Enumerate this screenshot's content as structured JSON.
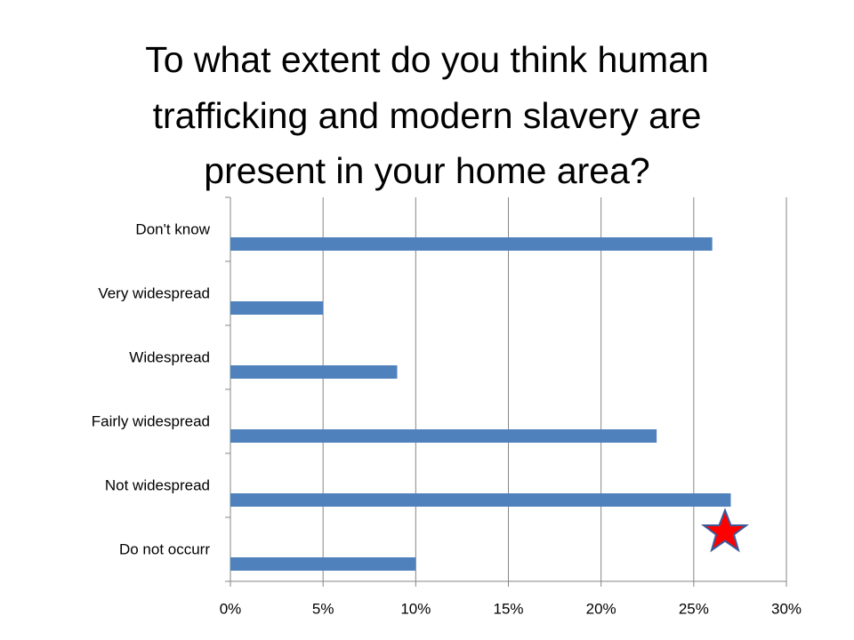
{
  "chart_data": {
    "type": "hbar",
    "title": [
      "To what extent do you think  human",
      "trafficking and modern slavery are",
      "present in your home area?"
    ],
    "categories": [
      "Don't know",
      "Very widespread",
      "Widespread",
      "Fairly widespread",
      "Not widespread",
      "Do not occurr"
    ],
    "values": [
      26,
      5,
      9,
      23,
      27,
      10
    ],
    "color": "#4f81bd",
    "xlim": [
      0,
      30
    ],
    "xticks": [
      {
        "value": 0,
        "label": "0%"
      },
      {
        "value": 5,
        "label": "5%"
      },
      {
        "value": 10,
        "label": "10%"
      },
      {
        "value": 15,
        "label": "15%"
      },
      {
        "value": 20,
        "label": "20%"
      },
      {
        "value": 25,
        "label": "25%"
      },
      {
        "value": 30,
        "label": "30%"
      }
    ],
    "grid": true
  }
}
